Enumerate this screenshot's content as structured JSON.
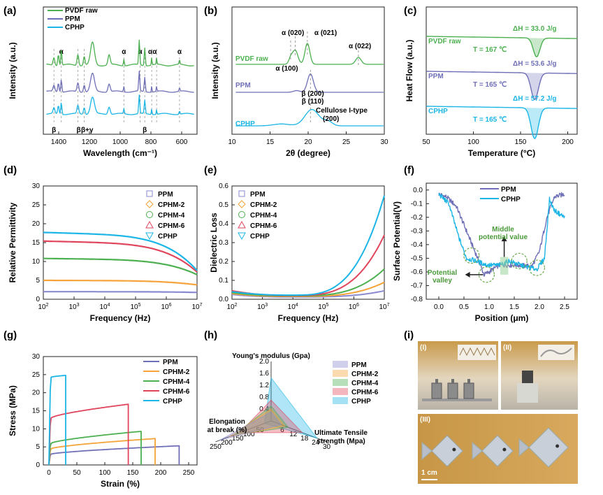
{
  "panel_labels": [
    "(a)",
    "(b)",
    "(c)",
    "(d)",
    "(e)",
    "(f)",
    "(g)",
    "(h)",
    "(i)"
  ],
  "colors": {
    "green": "#4cb050",
    "purple": "#6f6fb8",
    "cyan": "#1bb5e6",
    "orange": "#f5a33a",
    "red": "#e0455c",
    "light_purple": "#8a8ad0"
  },
  "chart_data": [
    {
      "id": "a",
      "type": "line",
      "xlabel": "Wavelength (cm⁻¹)",
      "ylabel": "Intensity (a.u.)",
      "xlim": [
        1500,
        500
      ],
      "xticks": [
        1400,
        1200,
        1000,
        800,
        600
      ],
      "series": [
        {
          "name": "PVDF raw",
          "color": "green"
        },
        {
          "name": "PPM",
          "color": "purple"
        },
        {
          "name": "CPHP",
          "color": "cyan"
        }
      ],
      "alpha_labels": [
        "α",
        "α",
        "α",
        "αα",
        "α"
      ],
      "beta_labels": [
        "β",
        "β",
        "β+γ",
        "β"
      ],
      "alpha_positions": [
        1383,
        976,
        870,
        795,
        763,
        614
      ],
      "beta_positions": [
        1431,
        1275,
        1234,
        840
      ]
    },
    {
      "id": "b",
      "type": "line",
      "xlabel": "2θ (degree)",
      "ylabel": "Intensity (a.u.)",
      "xlim": [
        10,
        30
      ],
      "xticks": [
        10,
        15,
        20,
        25,
        30
      ],
      "series": [
        {
          "name": "PVDF raw",
          "color": "green"
        },
        {
          "name": "PPM",
          "color": "purple"
        },
        {
          "name": "CPHP",
          "color": "cyan"
        }
      ],
      "annotations": [
        "α (020)",
        "α (021)",
        "α (100)",
        "α (022)",
        "β (200)",
        "β (110)",
        "Cellulose I-type",
        "(200)"
      ]
    },
    {
      "id": "c",
      "type": "line",
      "xlabel": "Temperature (°C)",
      "ylabel": "Heat Flow (a.u.)",
      "xlim": [
        50,
        210
      ],
      "xticks": [
        50,
        100,
        150,
        200
      ],
      "series": [
        {
          "name": "PVDF raw",
          "color": "green",
          "dH": "ΔH_m = 33.0 J/g",
          "Tm": "T_m = 167 ℃",
          "tm_value": 167
        },
        {
          "name": "PPM",
          "color": "purple",
          "dH": "ΔH_m = 53.6 J/g",
          "Tm": "T_m = 165 ℃",
          "tm_value": 165
        },
        {
          "name": "CPHP",
          "color": "cyan",
          "dH": "ΔH_m = 57.2 J/g",
          "Tm": "T_m = 165 ℃",
          "tm_value": 165
        }
      ]
    },
    {
      "id": "d",
      "type": "line",
      "xlabel": "Frequency (Hz)",
      "ylabel": "Relative Permittivity",
      "xscale": "log",
      "xlim": [
        100,
        10000000
      ],
      "ylim": [
        0,
        30
      ],
      "yticks": [
        0,
        5,
        10,
        15,
        20,
        25,
        30
      ],
      "series": [
        {
          "name": "PPM",
          "color": "light_purple",
          "start": 2.0,
          "end": 1.8
        },
        {
          "name": "CPHM-2",
          "color": "orange",
          "start": 5.0,
          "end": 3.8
        },
        {
          "name": "CPHM-4",
          "color": "green",
          "start": 10.8,
          "end": 6.5
        },
        {
          "name": "CPHM-6",
          "color": "red",
          "start": 15.4,
          "end": 7.2
        },
        {
          "name": "CPHP",
          "color": "cyan",
          "start": 17.7,
          "end": 7.6
        }
      ]
    },
    {
      "id": "e",
      "type": "line",
      "xlabel": "Frequency (Hz)",
      "ylabel": "Dielectric Loss",
      "xscale": "log",
      "xlim": [
        100,
        10000000
      ],
      "ylim": [
        0,
        0.6
      ],
      "yticks": [
        0.0,
        0.1,
        0.2,
        0.3,
        0.4,
        0.5,
        0.6
      ],
      "series": [
        {
          "name": "PPM",
          "color": "light_purple",
          "start": 0.025,
          "min": 0.012,
          "end": 0.045
        },
        {
          "name": "CPHM-2",
          "color": "orange",
          "start": 0.03,
          "min": 0.015,
          "end": 0.09
        },
        {
          "name": "CPHM-4",
          "color": "green",
          "start": 0.035,
          "min": 0.018,
          "end": 0.16
        },
        {
          "name": "CPHM-6",
          "color": "red",
          "start": 0.045,
          "min": 0.02,
          "end": 0.34
        },
        {
          "name": "CPHP",
          "color": "cyan",
          "start": 0.04,
          "min": 0.022,
          "end": 0.55
        }
      ]
    },
    {
      "id": "f",
      "type": "line",
      "xlabel": "Position (μm)",
      "ylabel": "Surface Potential(V)",
      "xlim": [
        -0.25,
        2.75
      ],
      "xticks": [
        0.0,
        0.5,
        1.0,
        1.5,
        2.0,
        2.5
      ],
      "ylim": [
        -0.8,
        0.05
      ],
      "yticks": [
        0.0,
        -0.1,
        -0.2,
        -0.3,
        -0.4,
        -0.5,
        -0.6,
        -0.7,
        -0.8
      ],
      "series": [
        {
          "name": "PPM",
          "color": "purple"
        },
        {
          "name": "CPHP",
          "color": "cyan"
        }
      ],
      "annotations": [
        "Middle",
        "potential value",
        "Potential",
        "valley"
      ]
    },
    {
      "id": "g",
      "type": "line",
      "xlabel": "Strain (%)",
      "ylabel": "Stress (MPa)",
      "xlim": [
        -10,
        265
      ],
      "xticks": [
        0,
        50,
        100,
        150,
        200,
        250
      ],
      "ylim": [
        0,
        30
      ],
      "yticks": [
        0,
        5,
        10,
        15,
        20,
        25,
        30
      ],
      "series": [
        {
          "name": "PPM",
          "color": "purple",
          "break_strain": 233,
          "break_stress": 5.3,
          "yield": 3.0
        },
        {
          "name": "CPHM-2",
          "color": "orange",
          "break_strain": 190,
          "break_stress": 7.3,
          "yield": 4.5
        },
        {
          "name": "CPHM-4",
          "color": "green",
          "break_strain": 165,
          "break_stress": 9.3,
          "yield": 6.0
        },
        {
          "name": "CPHM-6",
          "color": "red",
          "break_strain": 142,
          "break_stress": 16.8,
          "yield": 13.0
        },
        {
          "name": "CPHP",
          "color": "cyan",
          "break_strain": 30,
          "break_stress": 24.8,
          "yield": 24.3
        }
      ]
    },
    {
      "id": "h",
      "type": "radar",
      "axes": [
        "Young's modulus (Gpa)",
        "Elongation at break (%)",
        "Ultimate Tensile strength (Mpa)"
      ],
      "axis_labels": {
        "young": "Young's modulus (Gpa)",
        "elong1": "Elongation",
        "elong2": "at break (%)",
        "uts1": "Ultimate Tensile",
        "uts2": "strength (Mpa)"
      },
      "young_ticks": [
        "2.0",
        "1.6",
        "1.2",
        "0.8",
        "0.4"
      ],
      "elong_ticks": [
        "50",
        "100",
        "150",
        "200",
        "250"
      ],
      "uts_ticks": [
        "6",
        "12",
        "18",
        "24",
        "30"
      ],
      "series": [
        {
          "name": "PPM",
          "color": "light_purple",
          "young": 0.3,
          "elong": 233,
          "uts": 5.3
        },
        {
          "name": "CPHM-2",
          "color": "orange",
          "young": 0.4,
          "elong": 190,
          "uts": 7.3
        },
        {
          "name": "CPHM-4",
          "color": "green",
          "young": 0.5,
          "elong": 165,
          "uts": 9.3
        },
        {
          "name": "CPHM-6",
          "color": "red",
          "young": 0.7,
          "elong": 142,
          "uts": 16.8
        },
        {
          "name": "CPHP",
          "color": "cyan",
          "young": 1.45,
          "elong": 30,
          "uts": 24.8
        }
      ]
    }
  ],
  "panel_i": {
    "sub_labels": [
      "(I)",
      "(II)",
      "(III)"
    ],
    "scale_bar": "1 cm"
  }
}
